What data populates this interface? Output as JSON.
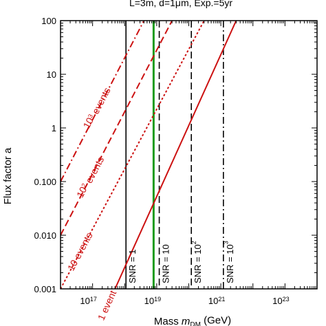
{
  "chart_data": {
    "type": "line",
    "title": "L=3m, d=1μm, Exp.=5yr",
    "xlabel": "Mass m_DM (GeV)",
    "xlabel_parts": {
      "prefix": "Mass ",
      "var": "m",
      "sub": "DM",
      "suffix": " (GeV)"
    },
    "ylabel": "Flux factor a",
    "xscale": "log",
    "yscale": "log",
    "xlim": [
      1e+16,
      1e+24
    ],
    "ylim": [
      0.001,
      100
    ],
    "grid": false,
    "x_ticks": [
      {
        "value": 1e+17,
        "base": "10",
        "exp": "17"
      },
      {
        "value": 1e+19,
        "base": "10",
        "exp": "19"
      },
      {
        "value": 1e+21,
        "base": "10",
        "exp": "21"
      },
      {
        "value": 1e+23,
        "base": "10",
        "exp": "23"
      }
    ],
    "y_ticks": [
      {
        "value": 100,
        "label": "100"
      },
      {
        "value": 10,
        "label": "10"
      },
      {
        "value": 1,
        "label": "1"
      },
      {
        "value": 0.1,
        "label": "0.100"
      },
      {
        "value": 0.01,
        "label": "0.010"
      },
      {
        "value": 0.001,
        "label": "0.001"
      }
    ],
    "series": [
      {
        "label_base": "1 event",
        "label_exp": "",
        "color": "#cc1111",
        "dash": "solid",
        "x": [
          5e+17,
          3e+21
        ],
        "y": [
          0.001,
          100
        ]
      },
      {
        "label_base": "10 events",
        "label_exp": "",
        "color": "#cc1111",
        "dash": "dotted",
        "x": [
          1e+16,
          3e+20
        ],
        "y": [
          0.001,
          100
        ]
      },
      {
        "label_base": "10",
        "label_exp": "2",
        "label_tail": " events",
        "color": "#cc1111",
        "dash": "dashed",
        "x": [
          1e+16,
          3e+19
        ],
        "y": [
          0.01,
          100
        ]
      },
      {
        "label_base": "10",
        "label_exp": "3",
        "label_tail": " events",
        "color": "#cc1111",
        "dash": "dashdot",
        "x": [
          1e+16,
          4e+18
        ],
        "y": [
          0.1,
          100
        ]
      }
    ],
    "vlines": [
      {
        "x": 1.1e+18,
        "label": "SNR = 1",
        "label_base": "SNR = 1",
        "label_exp": "",
        "color": "#000000",
        "dash": "solid"
      },
      {
        "x": 8e+18,
        "label": "",
        "label_base": "",
        "label_exp": "",
        "color": "#1a9a1a",
        "dash": "solid",
        "width": 3
      },
      {
        "x": 1.2e+19,
        "label": "SNR = 10",
        "label_base": "SNR = 10",
        "label_exp": "",
        "color": "#000000",
        "dash": "dashed"
      },
      {
        "x": 1.2e+20,
        "label": "SNR = 10^2",
        "label_base": "SNR = 10",
        "label_exp": "2",
        "color": "#000000",
        "dash": "dashed"
      },
      {
        "x": 1.2e+21,
        "label": "SNR = 10^3",
        "label_base": "SNR = 10",
        "label_exp": "3",
        "color": "#000000",
        "dash": "dashdot"
      }
    ]
  }
}
